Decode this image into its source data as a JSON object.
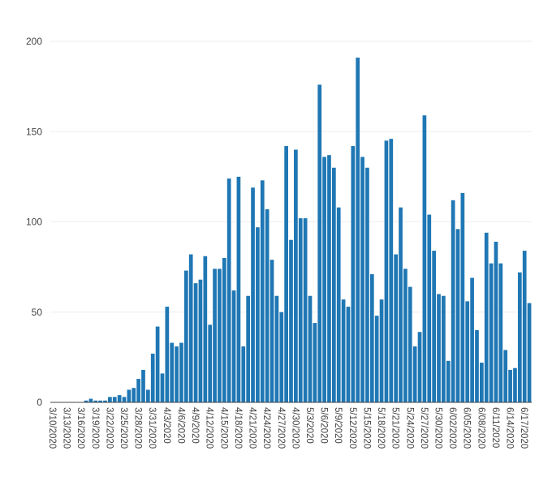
{
  "chart_data": {
    "type": "bar",
    "title": "",
    "xlabel": "",
    "ylabel": "",
    "ylim": [
      0,
      200
    ],
    "y_ticks": [
      0,
      50,
      100,
      150,
      200
    ],
    "grid": "horizontal",
    "legend": "none",
    "bar_color": "#1f77b4",
    "start_date": "2020-03-10",
    "tick_every_days": 3,
    "categories": [
      "3/10/2020",
      "3/11/2020",
      "3/12/2020",
      "3/13/2020",
      "3/14/2020",
      "3/15/2020",
      "3/16/2020",
      "3/17/2020",
      "3/18/2020",
      "3/19/2020",
      "3/20/2020",
      "3/21/2020",
      "3/22/2020",
      "3/23/2020",
      "3/24/2020",
      "3/25/2020",
      "3/26/2020",
      "3/27/2020",
      "3/28/2020",
      "3/29/2020",
      "3/30/2020",
      "3/31/2020",
      "4/1/2020",
      "4/2/2020",
      "4/3/2020",
      "4/4/2020",
      "4/5/2020",
      "4/6/2020",
      "4/7/2020",
      "4/8/2020",
      "4/9/2020",
      "4/10/2020",
      "4/11/2020",
      "4/12/2020",
      "4/13/2020",
      "4/14/2020",
      "4/15/2020",
      "4/16/2020",
      "4/17/2020",
      "4/18/2020",
      "4/19/2020",
      "4/20/2020",
      "4/21/2020",
      "4/22/2020",
      "4/23/2020",
      "4/24/2020",
      "4/25/2020",
      "4/26/2020",
      "4/27/2020",
      "4/28/2020",
      "4/29/2020",
      "4/30/2020",
      "5/1/2020",
      "5/2/2020",
      "5/3/2020",
      "5/4/2020",
      "5/5/2020",
      "5/6/2020",
      "5/7/2020",
      "5/8/2020",
      "5/9/2020",
      "5/10/2020",
      "5/11/2020",
      "5/12/2020",
      "5/13/2020",
      "5/14/2020",
      "5/15/2020",
      "5/16/2020",
      "5/17/2020",
      "5/18/2020",
      "5/19/2020",
      "5/20/2020",
      "5/21/2020",
      "5/22/2020",
      "5/23/2020",
      "5/24/2020",
      "5/25/2020",
      "5/26/2020",
      "5/27/2020",
      "5/28/2020",
      "5/29/2020",
      "5/30/2020",
      "5/31/2020",
      "6/1/2020",
      "6/2/2020",
      "6/3/2020",
      "6/4/2020",
      "6/5/2020",
      "6/6/2020",
      "6/7/2020",
      "6/8/2020",
      "6/9/2020",
      "6/10/2020",
      "6/11/2020",
      "6/12/2020",
      "6/13/2020",
      "6/14/2020",
      "6/15/2020",
      "6/16/2020",
      "6/17/2020",
      "6/18/2020"
    ],
    "values": [
      0,
      0,
      0,
      0,
      0,
      0,
      0,
      1,
      2,
      1,
      1,
      1,
      3,
      3,
      4,
      3,
      7,
      8,
      13,
      18,
      7,
      27,
      42,
      16,
      53,
      33,
      31,
      33,
      73,
      82,
      66,
      68,
      81,
      43,
      74,
      74,
      80,
      124,
      62,
      125,
      31,
      59,
      119,
      97,
      123,
      107,
      79,
      59,
      50,
      142,
      90,
      140,
      102,
      102,
      59,
      44,
      176,
      136,
      137,
      130,
      108,
      57,
      53,
      142,
      191,
      136,
      130,
      71,
      48,
      57,
      145,
      146,
      82,
      108,
      74,
      64,
      31,
      39,
      159,
      104,
      84,
      60,
      59,
      23,
      112,
      96,
      116,
      56,
      69,
      40,
      22,
      94,
      77,
      89,
      77,
      29,
      18,
      19,
      72,
      84,
      55
    ],
    "x_tick_labels": [
      "3/10/2020",
      "3/13/2020",
      "3/16/2020",
      "3/19/2020",
      "3/22/2020",
      "3/25/2020",
      "3/28/2020",
      "3/31/2020",
      "4/3/2020",
      "4/6/2020",
      "4/9/2020",
      "4/12/2020",
      "4/15/2020",
      "4/18/2020",
      "4/21/2020",
      "4/24/2020",
      "4/27/2020",
      "4/30/2020",
      "5/3/2020",
      "5/6/2020",
      "5/9/2020",
      "5/12/2020",
      "5/15/2020",
      "5/18/2020",
      "5/21/2020",
      "5/24/2020",
      "5/27/2020",
      "5/30/2020",
      "6/02/2020",
      "6/05/2020",
      "6/08/2020",
      "6/11/2020",
      "6/14/2020",
      "6/17/2020"
    ]
  }
}
